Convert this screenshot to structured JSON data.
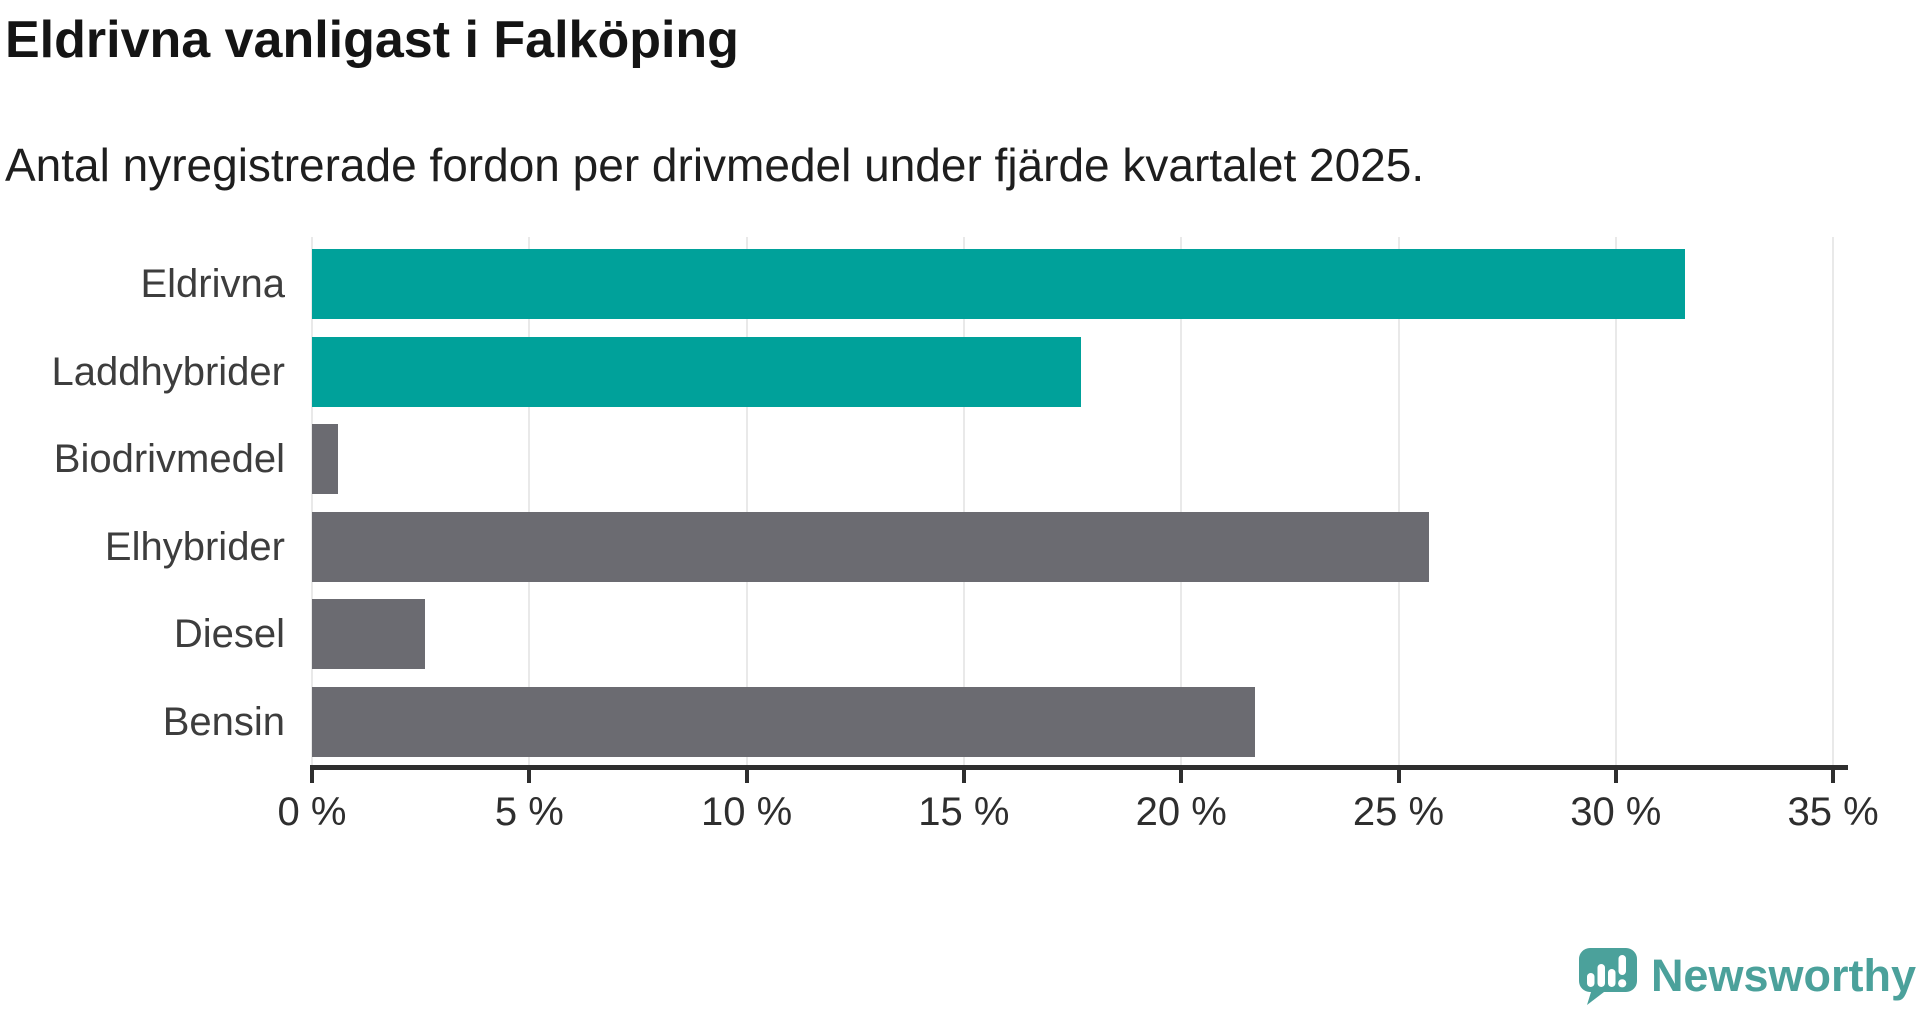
{
  "header": {
    "title": "Eldrivna vanligast i Falköping",
    "subtitle": "Antal nyregistrerade fordon per drivmedel under fjärde kvartalet 2025."
  },
  "branding": {
    "wordmark": "Newsworthy",
    "logo_color": "#4ba19b"
  },
  "colors": {
    "highlight_bar": "#00a19a",
    "default_bar": "#6b6b71",
    "gridline": "#e9e9e9",
    "axis": "#2e2e2e",
    "category_text": "#3d3d3d",
    "tick_text": "#2e2e2e",
    "title_text": "#141414"
  },
  "chart_data": {
    "type": "bar",
    "orientation": "horizontal",
    "title": "Eldrivna vanligast i Falköping",
    "subtitle": "Antal nyregistrerade fordon per drivmedel under fjärde kvartalet 2025.",
    "categories": [
      "Eldrivna",
      "Laddhybrider",
      "Biodrivmedel",
      "Elhybrider",
      "Diesel",
      "Bensin"
    ],
    "values": [
      31.6,
      17.7,
      0.6,
      25.7,
      2.6,
      21.7
    ],
    "unit": "%",
    "bar_colors": [
      "#00a19a",
      "#00a19a",
      "#6b6b71",
      "#6b6b71",
      "#6b6b71",
      "#6b6b71"
    ],
    "xlim": [
      0,
      35
    ],
    "x_ticks": [
      0,
      5,
      10,
      15,
      20,
      25,
      30,
      35
    ],
    "x_tick_labels": [
      "0 %",
      "5 %",
      "10 %",
      "15 %",
      "20 %",
      "25 %",
      "30 %",
      "35 %"
    ],
    "grid": true,
    "legend": false
  }
}
